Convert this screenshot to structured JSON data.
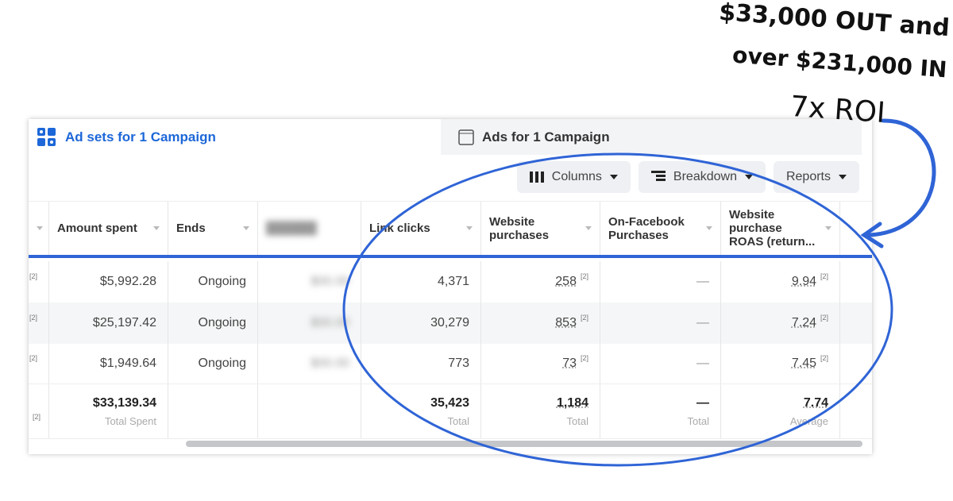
{
  "tabs": [
    {
      "label": "Ad sets for 1 Campaign",
      "icon": "grid-icon",
      "active": true
    },
    {
      "label": "Ads for 1 Campaign",
      "icon": "window-icon",
      "active": false
    }
  ],
  "toolbar": {
    "columns": "Columns",
    "breakdown": "Breakdown",
    "reports": "Reports"
  },
  "columns": [
    "Amount spent",
    "Ends",
    "Link clicks",
    "Website purchases",
    "On-Facebook Purchases",
    "Website purchase ROAS (return..."
  ],
  "rows": [
    {
      "amount": "$5,992.28",
      "ends": "Ongoing",
      "clicks": "4,371",
      "purchases": "258",
      "onfb": "—",
      "roas": "9.94"
    },
    {
      "amount": "$25,197.42",
      "ends": "Ongoing",
      "clicks": "30,279",
      "purchases": "853",
      "onfb": "—",
      "roas": "7.24"
    },
    {
      "amount": "$1,949.64",
      "ends": "Ongoing",
      "clicks": "773",
      "purchases": "73",
      "onfb": "—",
      "roas": "7.45"
    }
  ],
  "totals": {
    "amount": "$33,139.34",
    "amount_label": "Total Spent",
    "clicks": "35,423",
    "clicks_label": "Total",
    "purchases": "1,184",
    "purchases_label": "Total",
    "onfb": "—",
    "onfb_label": "Total",
    "roas": "7.74",
    "roas_label": "Average"
  },
  "footnote": "[2]",
  "annotation": {
    "line1": "$33,000 OUT and",
    "line2": "over $231,000 IN",
    "line3": "7x ROI"
  },
  "colors": {
    "accent": "#1d67d8",
    "circle": "#2f64d6"
  }
}
